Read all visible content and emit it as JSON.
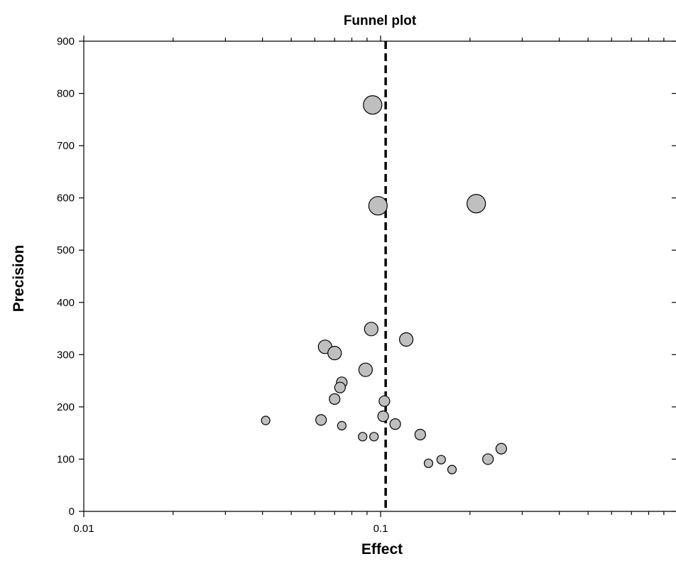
{
  "chart_data": {
    "type": "scatter",
    "title": "Funnel plot",
    "xlabel": "Effect",
    "ylabel": "Precision",
    "x_scale": "log",
    "xlim": [
      0.01,
      1
    ],
    "ylim": [
      0,
      900
    ],
    "x_tick_labels": [
      "0.01",
      "0.1"
    ],
    "y_ticks": [
      0,
      100,
      200,
      300,
      400,
      500,
      600,
      700,
      800,
      900
    ],
    "reference_line_x": 0.104,
    "marker_color": "#bfbfbf",
    "grid": false,
    "points": [
      {
        "x": 0.094,
        "y": 778,
        "size": 3
      },
      {
        "x": 0.098,
        "y": 585,
        "size": 3
      },
      {
        "x": 0.21,
        "y": 589,
        "size": 3
      },
      {
        "x": 0.093,
        "y": 349,
        "size": 2
      },
      {
        "x": 0.122,
        "y": 329,
        "size": 2
      },
      {
        "x": 0.065,
        "y": 315,
        "size": 2
      },
      {
        "x": 0.07,
        "y": 303,
        "size": 2
      },
      {
        "x": 0.089,
        "y": 271,
        "size": 2
      },
      {
        "x": 0.074,
        "y": 247,
        "size": 1
      },
      {
        "x": 0.073,
        "y": 237,
        "size": 1
      },
      {
        "x": 0.07,
        "y": 215,
        "size": 1
      },
      {
        "x": 0.103,
        "y": 211,
        "size": 1
      },
      {
        "x": 0.102,
        "y": 182,
        "size": 1
      },
      {
        "x": 0.041,
        "y": 174,
        "size": 0
      },
      {
        "x": 0.063,
        "y": 175,
        "size": 1
      },
      {
        "x": 0.074,
        "y": 164,
        "size": 0
      },
      {
        "x": 0.112,
        "y": 167,
        "size": 1
      },
      {
        "x": 0.136,
        "y": 147,
        "size": 1
      },
      {
        "x": 0.087,
        "y": 143,
        "size": 0
      },
      {
        "x": 0.095,
        "y": 143,
        "size": 0
      },
      {
        "x": 0.145,
        "y": 92,
        "size": 0
      },
      {
        "x": 0.16,
        "y": 99,
        "size": 0
      },
      {
        "x": 0.174,
        "y": 80,
        "size": 0
      },
      {
        "x": 0.23,
        "y": 100,
        "size": 1
      },
      {
        "x": 0.255,
        "y": 120,
        "size": 1
      }
    ]
  }
}
